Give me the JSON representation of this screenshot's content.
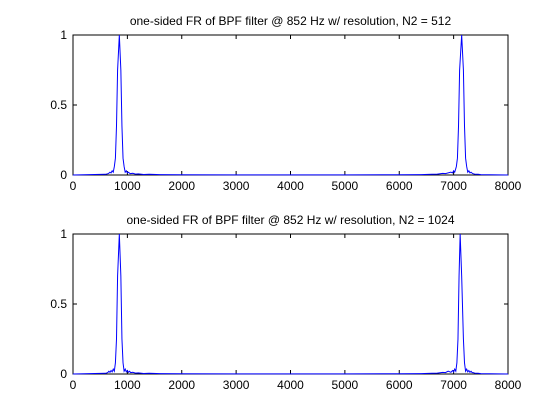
{
  "chart_data": [
    {
      "type": "line",
      "title": "one-sided FR of BPF filter @ 852 Hz w/ resolution, N2 = 512",
      "xlim": [
        0,
        8000
      ],
      "ylim": [
        0,
        1
      ],
      "xticks": [
        "0",
        "1000",
        "2000",
        "3000",
        "4000",
        "5000",
        "6000",
        "7000",
        "8000"
      ],
      "yticks": [
        "0",
        "0.5",
        "1"
      ],
      "grid": false,
      "color": "#0000ff",
      "series": [
        {
          "x": [
            0,
            600,
            650,
            680,
            700,
            720,
            740,
            760,
            780,
            800,
            820,
            852,
            880,
            900,
            920,
            940,
            960,
            980,
            1000,
            1020,
            1050,
            1100,
            1150,
            1200,
            1300,
            1400,
            1600,
            2000,
            3000,
            4000,
            5000,
            6000,
            6400,
            6600,
            6700,
            6800,
            6850,
            6950,
            6980,
            7000,
            7020,
            7050,
            7070,
            7090,
            7110,
            7148,
            7180,
            7200,
            7220,
            7240,
            7260,
            7280,
            7300,
            7320,
            7350,
            7400,
            7450,
            7500,
            8000
          ],
          "y": [
            0,
            0.005,
            0.01,
            0.02,
            0.015,
            0.03,
            0.02,
            0.06,
            0.12,
            0.35,
            0.75,
            1.0,
            0.75,
            0.35,
            0.12,
            0.06,
            0.02,
            0.03,
            0.015,
            0.02,
            0.01,
            0.012,
            0.006,
            0.008,
            0.004,
            0.005,
            0.003,
            0.002,
            0.001,
            0.001,
            0.001,
            0.002,
            0.003,
            0.005,
            0.006,
            0.012,
            0.01,
            0.02,
            0.015,
            0.03,
            0.02,
            0.06,
            0.12,
            0.35,
            0.75,
            1.0,
            0.75,
            0.35,
            0.12,
            0.06,
            0.02,
            0.03,
            0.015,
            0.02,
            0.01,
            0.005,
            0.005,
            0.003,
            0
          ]
        }
      ]
    },
    {
      "type": "line",
      "title": "one-sided FR of BPF filter @ 852 Hz w/ resolution, N2 = 1024",
      "xlim": [
        0,
        8000
      ],
      "ylim": [
        0,
        1
      ],
      "xticks": [
        "0",
        "1000",
        "2000",
        "3000",
        "4000",
        "5000",
        "6000",
        "7000",
        "8000"
      ],
      "yticks": [
        "0",
        "0.5",
        "1"
      ],
      "grid": false,
      "color": "#0000ff",
      "series": [
        {
          "x": [
            0,
            600,
            640,
            660,
            680,
            700,
            720,
            740,
            760,
            780,
            800,
            820,
            852,
            880,
            900,
            920,
            940,
            960,
            980,
            1000,
            1020,
            1040,
            1060,
            1100,
            1150,
            1200,
            1300,
            1400,
            1600,
            2000,
            3000,
            4000,
            5000,
            6000,
            6400,
            6600,
            6700,
            6800,
            6850,
            6900,
            6950,
            6980,
            7000,
            7020,
            7040,
            7060,
            7080,
            7100,
            7120,
            7148,
            7180,
            7200,
            7220,
            7240,
            7260,
            7280,
            7300,
            7320,
            7340,
            7360,
            7400,
            7450,
            7500,
            8000
          ],
          "y": [
            0,
            0.005,
            0.01,
            0.02,
            0.012,
            0.025,
            0.015,
            0.035,
            0.02,
            0.08,
            0.25,
            0.7,
            1.0,
            0.7,
            0.25,
            0.08,
            0.02,
            0.035,
            0.015,
            0.025,
            0.012,
            0.02,
            0.01,
            0.012,
            0.006,
            0.008,
            0.004,
            0.005,
            0.003,
            0.002,
            0.001,
            0.001,
            0.001,
            0.002,
            0.003,
            0.005,
            0.006,
            0.012,
            0.01,
            0.02,
            0.012,
            0.025,
            0.015,
            0.035,
            0.02,
            0.08,
            0.25,
            0.7,
            1.0,
            0.7,
            0.25,
            0.08,
            0.02,
            0.035,
            0.015,
            0.025,
            0.012,
            0.02,
            0.01,
            0.01,
            0.005,
            0.005,
            0.003,
            0
          ]
        }
      ]
    }
  ]
}
